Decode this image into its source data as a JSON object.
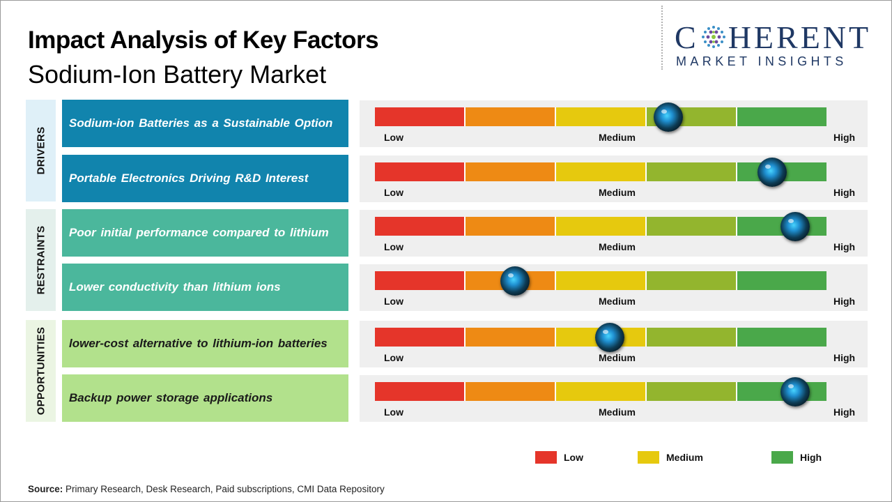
{
  "header": {
    "title": "Impact Analysis of Key Factors",
    "subtitle": "Sodium-Ion Battery Market"
  },
  "logo": {
    "word_left": "C",
    "word_right": "HERENT",
    "tagline": "MARKET INSIGHTS"
  },
  "categories": [
    {
      "label": "DRIVERS",
      "color": "#dff0f8"
    },
    {
      "label": "RESTRAINTS",
      "color": "#e4f0ec"
    },
    {
      "label": "OPPORTUNITIES",
      "color": "#ebf5e3"
    }
  ],
  "scale": {
    "low_label": "Low",
    "medium_label": "Medium",
    "high_label": "High",
    "colors": [
      "#e5352a",
      "#ee8a14",
      "#e6c90e",
      "#93b52e",
      "#4aa84a"
    ]
  },
  "legend": [
    {
      "label": "Low",
      "color": "#e5352a"
    },
    {
      "label": "Medium",
      "color": "#e6c90e"
    },
    {
      "label": "High",
      "color": "#4aa84a"
    }
  ],
  "chart_data": {
    "type": "bar",
    "title": "Impact Analysis of Key Factors",
    "subtitle": "Sodium-Ion Battery Market",
    "scale_labels": [
      "Low",
      "Medium",
      "High"
    ],
    "factors": [
      {
        "category": "DRIVERS",
        "name": "Sodium-ion Batteries as a Sustainable Option",
        "impact": 0.65,
        "fill": "#1184ad",
        "text_color": "#ffffff"
      },
      {
        "category": "DRIVERS",
        "name": "Portable Electronics Driving R&D Interest",
        "impact": 0.88,
        "fill": "#1184ad",
        "text_color": "#ffffff"
      },
      {
        "category": "RESTRAINTS",
        "name": "Poor initial performance compared to lithium",
        "impact": 0.93,
        "fill": "#4bb79c",
        "text_color": "#ffffff"
      },
      {
        "category": "RESTRAINTS",
        "name": "Lower conductivity than lithium ions",
        "impact": 0.31,
        "fill": "#4bb79c",
        "text_color": "#ffffff"
      },
      {
        "category": "OPPORTUNITIES",
        "name": "lower-cost alternative to lithium-ion batteries",
        "impact": 0.52,
        "fill": "#b2e18c",
        "text_color": "#1a1a1a"
      },
      {
        "category": "OPPORTUNITIES",
        "name": "Backup power storage applications",
        "impact": 0.93,
        "fill": "#b2e18c",
        "text_color": "#1a1a1a"
      }
    ]
  },
  "source": {
    "label": "Source:",
    "text": "Primary Research, Desk Research, Paid subscriptions, CMI Data Repository"
  }
}
